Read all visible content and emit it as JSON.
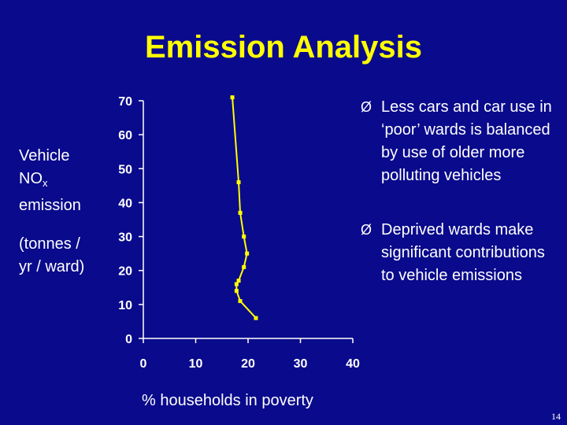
{
  "slide": {
    "title": "Emission Analysis",
    "page_number": "14"
  },
  "y_axis_label": {
    "line1": "Vehicle",
    "line2_main": "NO",
    "line2_sub": "x",
    "line3": "emission",
    "line4": "(tonnes /",
    "line5": "yr / ward)"
  },
  "bullets": [
    {
      "marker": "Ø",
      "text": "Less cars and car use in ‘poor’ wards is balanced by use of older more polluting vehicles"
    },
    {
      "marker": "Ø",
      "text": "Deprived wards make significant contributions to vehicle emissions"
    }
  ],
  "colors": {
    "background": "#0a0a8c",
    "title": "#ffff00",
    "series": "#ffff00",
    "text": "#ffffff"
  },
  "chart_data": {
    "type": "line",
    "xlabel": "% households in poverty",
    "ylabel": "Vehicle NOx emission (tonnes / yr / ward)",
    "xlim": [
      0,
      40
    ],
    "ylim": [
      0,
      70
    ],
    "xticks": [
      0,
      10,
      20,
      30,
      40
    ],
    "yticks": [
      0,
      10,
      20,
      30,
      40,
      50,
      60,
      70
    ],
    "grid": false,
    "series": [
      {
        "x": [
          21.5,
          18.5,
          17.8,
          17.8,
          18.2,
          19.2,
          19.8,
          19.2,
          18.5,
          18.2,
          17.0
        ],
        "y": [
          6,
          11,
          14,
          16,
          17,
          21,
          25,
          30,
          37,
          46,
          71
        ]
      }
    ]
  }
}
